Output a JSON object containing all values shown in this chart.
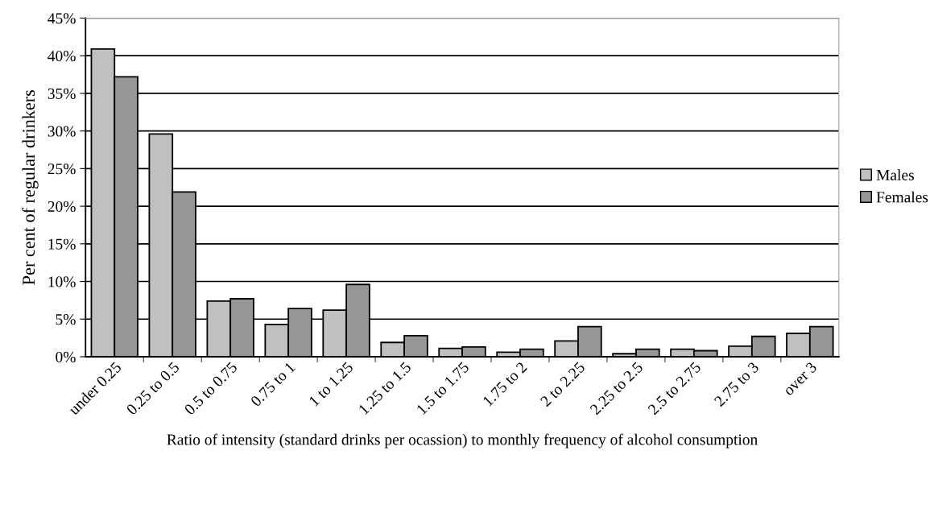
{
  "chart_data": {
    "type": "bar",
    "xlabel": "Ratio of intensity (standard drinks per ocassion) to monthly frequency of alcohol consumption",
    "ylabel": "Per cent of regular drinkers",
    "categories": [
      "under 0.25",
      "0.25 to 0.5",
      "0.5 to 0.75",
      "0.75 to 1",
      "1 to 1.25",
      "1.25 to 1.5",
      "1.5 to 1.75",
      "1.75 to 2",
      "2 to 2.25",
      "2.25 to 2.5",
      "2.5 to 2.75",
      "2.75 to 3",
      "over 3"
    ],
    "series": [
      {
        "name": "Males",
        "color": "#c0c0c0",
        "values": [
          40.9,
          29.6,
          7.4,
          4.3,
          6.2,
          1.9,
          1.1,
          0.6,
          2.1,
          0.4,
          1.0,
          1.4,
          3.1
        ]
      },
      {
        "name": "Females",
        "color": "#969696",
        "values": [
          37.2,
          21.9,
          7.7,
          6.4,
          9.6,
          2.8,
          1.3,
          1.0,
          4.0,
          1.0,
          0.8,
          2.7,
          4.0
        ]
      }
    ],
    "ylim": [
      0,
      45
    ],
    "yticks": [
      {
        "value": 0,
        "label": "0%"
      },
      {
        "value": 5,
        "label": "5%"
      },
      {
        "value": 10,
        "label": "10%"
      },
      {
        "value": 15,
        "label": "15%"
      },
      {
        "value": 20,
        "label": "20%"
      },
      {
        "value": 25,
        "label": "25%"
      },
      {
        "value": 30,
        "label": "30%"
      },
      {
        "value": 35,
        "label": "35%"
      },
      {
        "value": 40,
        "label": "40%"
      },
      {
        "value": 45,
        "label": "45%"
      }
    ],
    "grid": "y",
    "legend": "right"
  }
}
